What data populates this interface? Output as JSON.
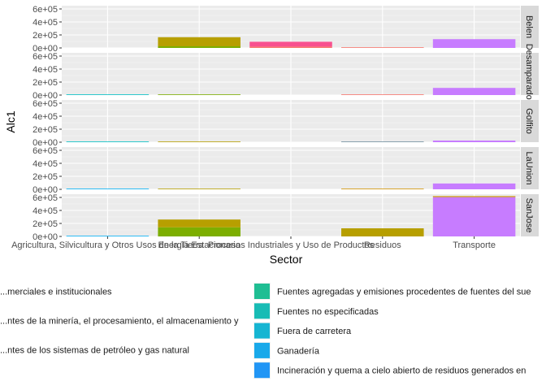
{
  "chart_data": {
    "type": "bar",
    "stacked": true,
    "faceted": true,
    "xlabel": "Sector",
    "ylabel": "Alc1",
    "ylim": [
      0,
      650000
    ],
    "y_ticks": [
      0,
      200000,
      400000,
      600000
    ],
    "y_tick_labels": [
      "0e+00",
      "2e+05",
      "4e+05",
      "6e+05"
    ],
    "categories": [
      "Agricultura, Silvicultura y Otros Usos de la Tierra",
      "Energia Estacionaria",
      "Procesos Industriales y Uso de Productos",
      "Residuos",
      "Transporte"
    ],
    "facet_strip_labels": [
      "Belen",
      "Desamparados",
      "Golfito",
      "LaUnion",
      "SanJose"
    ],
    "panel_background": "#ebebeb",
    "grid_color": "#ffffff",
    "strip_background": "#d9d9d9",
    "facets": [
      {
        "name": "Belen",
        "bars": [
          {
            "category": "Agricultura, Silvicultura y Otros Usos de la Tierra",
            "segments": []
          },
          {
            "category": "Energia Estacionaria",
            "segments": [
              {
                "color": "#7CAE00",
                "value": 25000
              },
              {
                "color": "#B79F00",
                "value": 140000
              }
            ]
          },
          {
            "category": "Procesos Industriales y Uso de Productos",
            "segments": [
              {
                "color": "#F8766D",
                "value": 20000
              },
              {
                "color": "#F8508F",
                "value": 75000
              }
            ]
          },
          {
            "category": "Residuos",
            "segments": [
              {
                "color": "#F8766D",
                "value": 3000
              }
            ]
          },
          {
            "category": "Transporte",
            "segments": [
              {
                "color": "#C77CFF",
                "value": 135000
              }
            ]
          }
        ]
      },
      {
        "name": "Desamparados",
        "bars": [
          {
            "category": "Agricultura, Silvicultura y Otros Usos de la Tierra",
            "segments": [
              {
                "color": "#00BFC4",
                "value": 3000
              }
            ]
          },
          {
            "category": "Energia Estacionaria",
            "segments": [
              {
                "color": "#7CAE00",
                "value": 8000
              }
            ]
          },
          {
            "category": "Procesos Industriales y Uso de Productos",
            "segments": []
          },
          {
            "category": "Residuos",
            "segments": [
              {
                "color": "#F8766D",
                "value": 3000
              }
            ]
          },
          {
            "category": "Transporte",
            "segments": [
              {
                "color": "#C77CFF",
                "value": 110000
              }
            ]
          }
        ]
      },
      {
        "name": "Golfito",
        "bars": [
          {
            "category": "Agricultura, Silvicultura y Otros Usos de la Tierra",
            "segments": [
              {
                "color": "#00BFC4",
                "value": 2000
              }
            ]
          },
          {
            "category": "Energia Estacionaria",
            "segments": [
              {
                "color": "#B79F00",
                "value": 3000
              }
            ]
          },
          {
            "category": "Procesos Industriales y Uso de Productos",
            "segments": []
          },
          {
            "category": "Residuos",
            "segments": [
              {
                "color": "#6F8FA0",
                "value": 8000
              }
            ]
          },
          {
            "category": "Transporte",
            "segments": [
              {
                "color": "#C77CFF",
                "value": 25000
              }
            ]
          }
        ]
      },
      {
        "name": "LaUnion",
        "bars": [
          {
            "category": "Agricultura, Silvicultura y Otros Usos de la Tierra",
            "segments": [
              {
                "color": "#00B0F6",
                "value": 6000
              }
            ]
          },
          {
            "category": "Energia Estacionaria",
            "segments": [
              {
                "color": "#B79F00",
                "value": 9000
              }
            ]
          },
          {
            "category": "Procesos Industriales y Uso de Productos",
            "segments": []
          },
          {
            "category": "Residuos",
            "segments": [
              {
                "color": "#D39200",
                "value": 6000
              }
            ]
          },
          {
            "category": "Transporte",
            "segments": [
              {
                "color": "#C77CFF",
                "value": 90000
              }
            ]
          }
        ]
      },
      {
        "name": "SanJose",
        "bars": [
          {
            "category": "Agricultura, Silvicultura y Otros Usos de la Tierra",
            "segments": [
              {
                "color": "#00B0F6",
                "value": 5000
              }
            ]
          },
          {
            "category": "Energia Estacionaria",
            "segments": [
              {
                "color": "#7CAE00",
                "value": 140000
              },
              {
                "color": "#B79F00",
                "value": 120000
              }
            ]
          },
          {
            "category": "Procesos Industriales y Uso de Productos",
            "segments": []
          },
          {
            "category": "Residuos",
            "segments": [
              {
                "color": "#B79F00",
                "value": 125000
              }
            ]
          },
          {
            "category": "Transporte",
            "segments": [
              {
                "color": "#C77CFF",
                "value": 605000
              },
              {
                "color": "#CD9600",
                "value": 15000
              }
            ]
          }
        ]
      }
    ],
    "legend": {
      "placement": "bottom",
      "left_column": [
        {
          "label": "...merciales e institucionales"
        },
        {
          "label": "...ntes de la minería, el procesamiento, el almacenamiento y"
        },
        {
          "label": "...ntes de los sistemas de petróleo y gas natural"
        }
      ],
      "right_column": [
        {
          "label": "Fuentes agregadas y emisiones procedentes de fuentes del sue",
          "color": "#1FBE93"
        },
        {
          "label": "Fuentes no especificadas",
          "color": "#18BCB5"
        },
        {
          "label": "Fuera de carretera",
          "color": "#16B5D2"
        },
        {
          "label": "Ganadería",
          "color": "#19A9EA"
        },
        {
          "label": "Incineración y quema a cielo abierto de residuos generados en",
          "color": "#2196F5"
        }
      ]
    }
  }
}
